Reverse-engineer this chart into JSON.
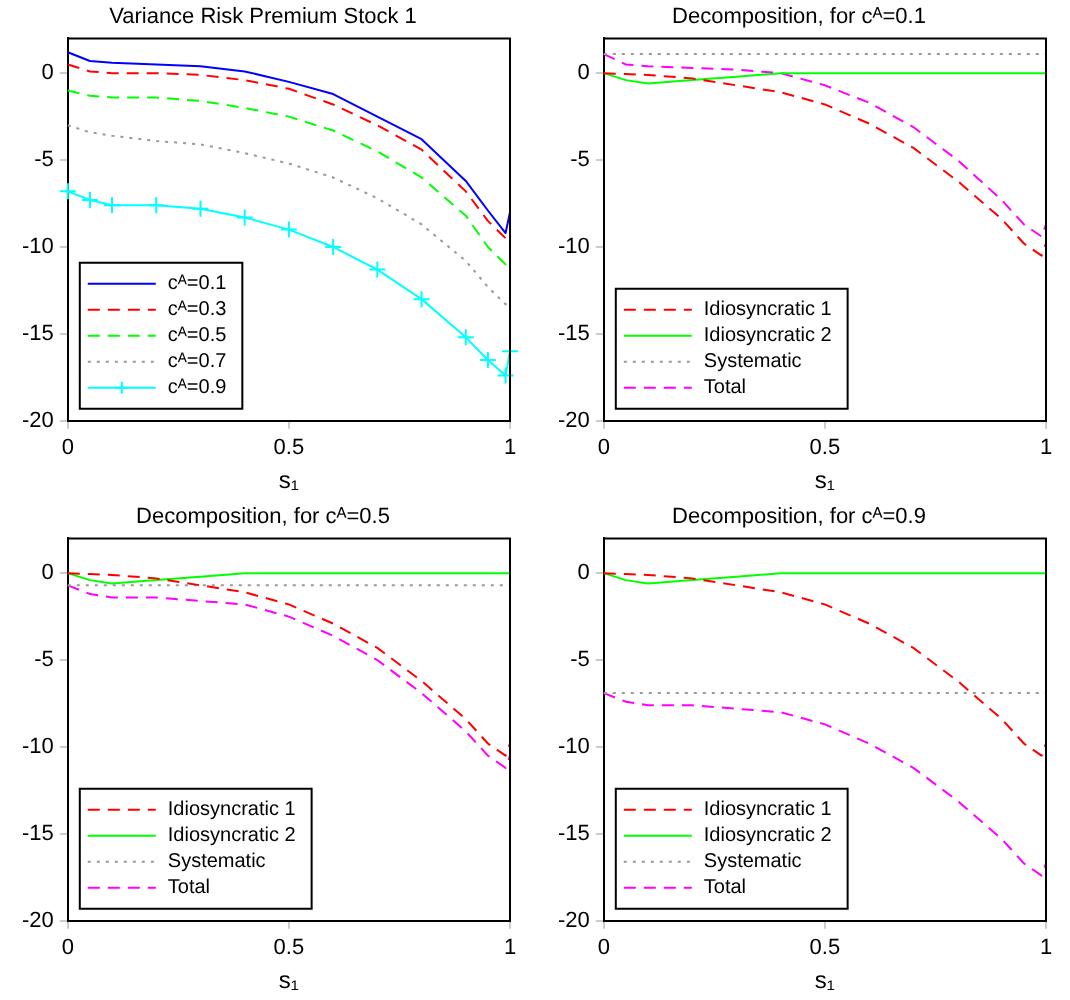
{
  "chart_data": [
    {
      "type": "line",
      "title": "Variance Risk Premium Stock 1",
      "xlabel": "s₁",
      "xlim": [
        0,
        1
      ],
      "xticks": [
        0,
        0.5,
        1
      ],
      "ylim": [
        -20,
        2
      ],
      "yticks": [
        -20,
        -15,
        -10,
        -5,
        0
      ],
      "grid": false,
      "legend": "bottom left",
      "x": [
        0,
        0.05,
        0.1,
        0.2,
        0.3,
        0.4,
        0.5,
        0.6,
        0.7,
        0.8,
        0.9,
        0.95,
        0.99,
        1
      ],
      "series": [
        {
          "name": "cᴬ=0.1",
          "color": "#0000ff",
          "line_style": "solid",
          "values": [
            1.2,
            0.7,
            0.6,
            0.5,
            0.4,
            0.1,
            -0.5,
            -1.2,
            -2.5,
            -3.8,
            -6.2,
            -7.9,
            -9.2,
            -8
          ]
        },
        {
          "name": "cᴬ=0.3",
          "color": "#ff0000",
          "line_style": "dashed",
          "values": [
            0.5,
            0.1,
            0,
            0,
            -0.1,
            -0.4,
            -0.9,
            -1.8,
            -3,
            -4.4,
            -6.8,
            -8.5,
            -9.5,
            -9.2
          ]
        },
        {
          "name": "cᴬ=0.5",
          "color": "#00ff00",
          "line_style": "dashed",
          "values": [
            -1,
            -1.3,
            -1.4,
            -1.4,
            -1.6,
            -2,
            -2.5,
            -3.3,
            -4.5,
            -6,
            -8.2,
            -10,
            -11,
            -10.7
          ]
        },
        {
          "name": "cᴬ=0.7",
          "color": "#999999",
          "line_style": "dotted",
          "values": [
            -3,
            -3.4,
            -3.6,
            -3.9,
            -4.1,
            -4.6,
            -5.2,
            -6,
            -7.2,
            -8.7,
            -10.8,
            -12.3,
            -13.3,
            -13
          ]
        },
        {
          "name": "cᴬ=0.9",
          "color": "#00ffff",
          "line_style": "solid",
          "marker": "cross",
          "values": [
            -6.8,
            -7.3,
            -7.6,
            -7.6,
            -7.8,
            -8.3,
            -9,
            -10,
            -11.3,
            -13,
            -15.2,
            -16.5,
            -17.4,
            -16
          ]
        }
      ]
    },
    {
      "type": "line",
      "title": "Decomposition, for cᴬ=0.1",
      "xlabel": "s₁",
      "xlim": [
        0,
        1
      ],
      "xticks": [
        0,
        0.5,
        1
      ],
      "ylim": [
        -20,
        2
      ],
      "yticks": [
        -20,
        -15,
        -10,
        -5,
        0
      ],
      "grid": false,
      "legend": "bottom left",
      "x": [
        0,
        0.05,
        0.1,
        0.2,
        0.3,
        0.4,
        0.5,
        0.6,
        0.7,
        0.8,
        0.9,
        0.95,
        0.99,
        1
      ],
      "series": [
        {
          "name": "Idiosyncratic 1",
          "color": "#ff0000",
          "line_style": "dashed",
          "values": [
            0,
            -0.05,
            -0.1,
            -0.3,
            -0.7,
            -1.1,
            -1.8,
            -2.9,
            -4.3,
            -6.2,
            -8.4,
            -9.8,
            -10.5,
            -9.8
          ]
        },
        {
          "name": "Idiosyncratic 2",
          "color": "#00ff00",
          "line_style": "solid",
          "values": [
            0,
            -0.4,
            -0.6,
            -0.4,
            -0.2,
            0,
            0,
            0,
            0,
            0,
            0,
            0,
            0,
            0
          ]
        },
        {
          "name": "Systematic",
          "color": "#999999",
          "line_style": "dotted",
          "values": [
            1.1,
            1.1,
            1.1,
            1.1,
            1.1,
            1.1,
            1.1,
            1.1,
            1.1,
            1.1,
            1.1,
            1.1,
            1.1,
            1.1
          ]
        },
        {
          "name": "Total",
          "color": "#ff00ff",
          "line_style": "dashed",
          "values": [
            1.1,
            0.5,
            0.4,
            0.3,
            0.2,
            0,
            -0.7,
            -1.7,
            -3.1,
            -5,
            -7.3,
            -8.7,
            -9.4,
            -8.7
          ]
        }
      ]
    },
    {
      "type": "line",
      "title": "Decomposition, for cᴬ=0.5",
      "xlabel": "s₁",
      "xlim": [
        0,
        1
      ],
      "xticks": [
        0,
        0.5,
        1
      ],
      "ylim": [
        -20,
        2
      ],
      "yticks": [
        -20,
        -15,
        -10,
        -5,
        0
      ],
      "grid": false,
      "legend": "bottom left",
      "x": [
        0,
        0.05,
        0.1,
        0.2,
        0.3,
        0.4,
        0.5,
        0.6,
        0.7,
        0.8,
        0.9,
        0.95,
        0.99,
        1
      ],
      "series": [
        {
          "name": "Idiosyncratic 1",
          "color": "#ff0000",
          "line_style": "dashed",
          "values": [
            0,
            -0.05,
            -0.1,
            -0.3,
            -0.7,
            -1.1,
            -1.8,
            -2.9,
            -4.3,
            -6.2,
            -8.4,
            -9.8,
            -10.5,
            -9.8
          ]
        },
        {
          "name": "Idiosyncratic 2",
          "color": "#00ff00",
          "line_style": "solid",
          "values": [
            0,
            -0.4,
            -0.6,
            -0.4,
            -0.2,
            0,
            0,
            0,
            0,
            0,
            0,
            0,
            0,
            0
          ]
        },
        {
          "name": "Systematic",
          "color": "#999999",
          "line_style": "dotted",
          "values": [
            -0.7,
            -0.7,
            -0.7,
            -0.7,
            -0.7,
            -0.7,
            -0.7,
            -0.7,
            -0.7,
            -0.7,
            -0.7,
            -0.7,
            -0.7,
            -0.7
          ]
        },
        {
          "name": "Total",
          "color": "#ff00ff",
          "line_style": "dashed",
          "values": [
            -0.7,
            -1.2,
            -1.4,
            -1.4,
            -1.6,
            -1.8,
            -2.5,
            -3.6,
            -5,
            -6.9,
            -9.1,
            -10.5,
            -11.2,
            -10.5
          ]
        }
      ]
    },
    {
      "type": "line",
      "title": "Decomposition, for cᴬ=0.9",
      "xlabel": "s₁",
      "xlim": [
        0,
        1
      ],
      "xticks": [
        0,
        0.5,
        1
      ],
      "ylim": [
        -20,
        2
      ],
      "yticks": [
        -20,
        -15,
        -10,
        -5,
        0
      ],
      "grid": false,
      "legend": "bottom left",
      "x": [
        0,
        0.05,
        0.1,
        0.2,
        0.3,
        0.4,
        0.5,
        0.6,
        0.7,
        0.8,
        0.9,
        0.95,
        0.99,
        1
      ],
      "series": [
        {
          "name": "Idiosyncratic 1",
          "color": "#ff0000",
          "line_style": "dashed",
          "values": [
            0,
            -0.05,
            -0.1,
            -0.3,
            -0.7,
            -1.1,
            -1.8,
            -2.9,
            -4.3,
            -6.2,
            -8.4,
            -9.8,
            -10.5,
            -9.8
          ]
        },
        {
          "name": "Idiosyncratic 2",
          "color": "#00ff00",
          "line_style": "solid",
          "values": [
            0,
            -0.4,
            -0.6,
            -0.4,
            -0.2,
            0,
            0,
            0,
            0,
            0,
            0,
            0,
            0,
            0
          ]
        },
        {
          "name": "Systematic",
          "color": "#999999",
          "line_style": "dotted",
          "values": [
            -6.9,
            -6.9,
            -6.9,
            -6.9,
            -6.9,
            -6.9,
            -6.9,
            -6.9,
            -6.9,
            -6.9,
            -6.9,
            -6.9,
            -6.9,
            -6.9
          ]
        },
        {
          "name": "Total",
          "color": "#ff00ff",
          "line_style": "dashed",
          "values": [
            -6.9,
            -7.4,
            -7.6,
            -7.6,
            -7.8,
            -8,
            -8.7,
            -9.8,
            -11.2,
            -13.1,
            -15.3,
            -16.7,
            -17.4,
            -16.7
          ]
        }
      ]
    }
  ]
}
